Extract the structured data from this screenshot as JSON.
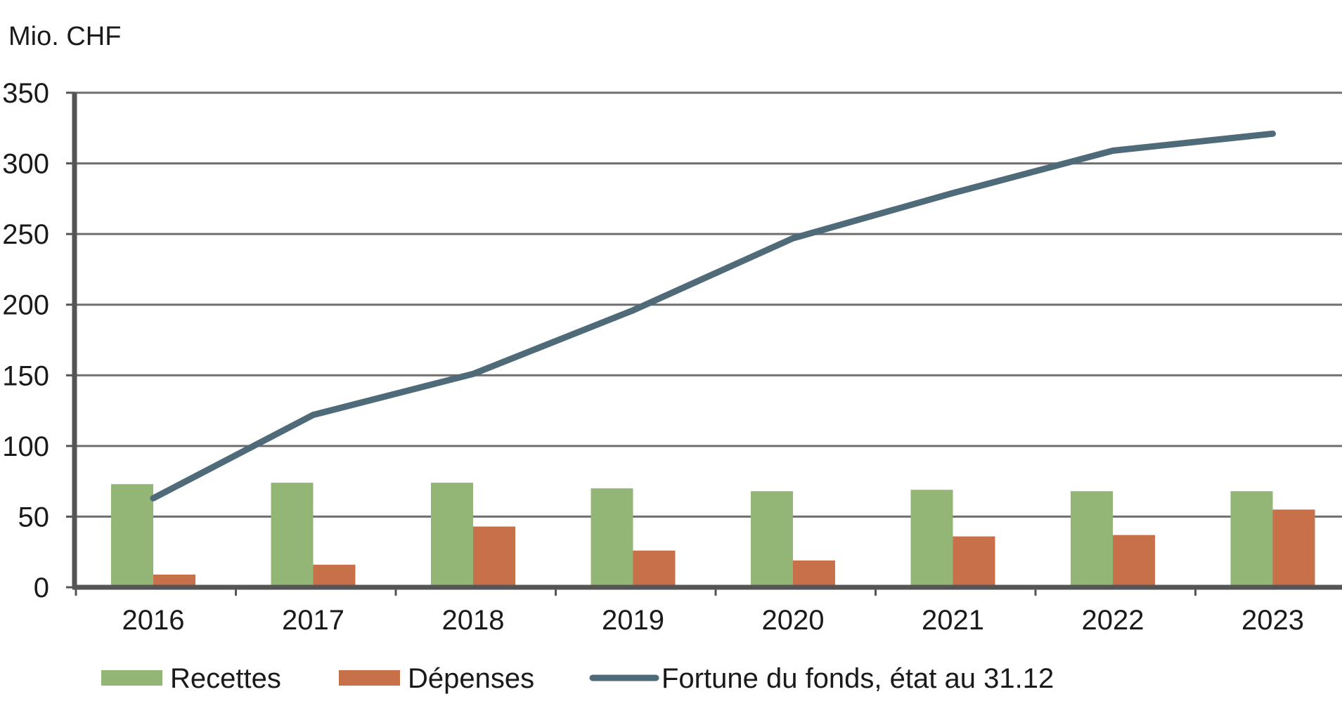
{
  "chart_data": {
    "type": "bar",
    "title": "",
    "ylabel": "Mio. CHF",
    "xlabel": "",
    "ylim": [
      0,
      350
    ],
    "yticks": [
      0,
      50,
      100,
      150,
      200,
      250,
      300,
      350
    ],
    "grid": true,
    "legend_position": "bottom",
    "categories": [
      "2016",
      "2017",
      "2018",
      "2019",
      "2020",
      "2021",
      "2022",
      "2023"
    ],
    "series": [
      {
        "name": "Recettes",
        "kind": "bar",
        "color": "#93b677",
        "values": [
          73,
          74,
          74,
          70,
          68,
          69,
          68,
          68
        ]
      },
      {
        "name": "Dépenses",
        "kind": "bar",
        "color": "#c8704a",
        "values": [
          9,
          16,
          43,
          26,
          19,
          36,
          37,
          55
        ]
      },
      {
        "name": "Fortune du fonds, état au 31.12",
        "kind": "line",
        "color": "#4f6b7a",
        "values": [
          63,
          122,
          151,
          196,
          247,
          279,
          309,
          321
        ]
      }
    ]
  }
}
